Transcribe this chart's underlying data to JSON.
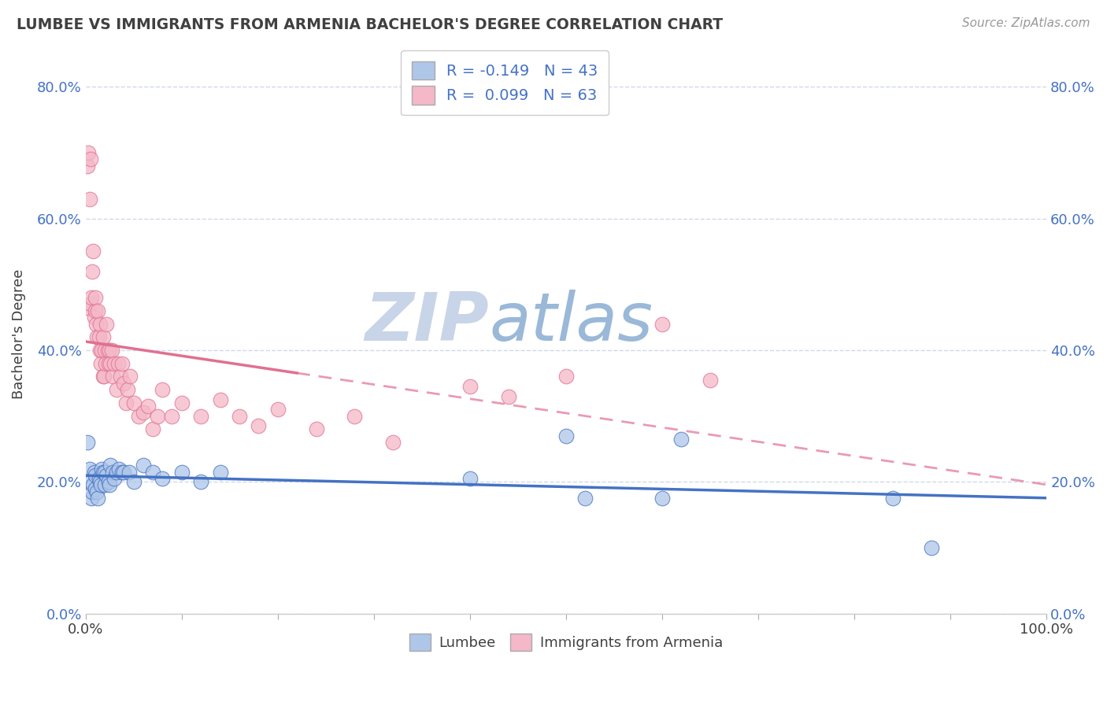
{
  "title": "LUMBEE VS IMMIGRANTS FROM ARMENIA BACHELOR'S DEGREE CORRELATION CHART",
  "source": "Source: ZipAtlas.com",
  "ylabel": "Bachelor's Degree",
  "lumbee_R": -0.149,
  "lumbee_N": 43,
  "armenia_R": 0.099,
  "armenia_N": 63,
  "lumbee_color": "#aec6e8",
  "armenia_color": "#f4b8c8",
  "lumbee_line_color": "#4472c4",
  "armenia_line_color": "#e07090",
  "bg_color": "#ffffff",
  "grid_color": "#d0d8e8",
  "title_color": "#404040",
  "watermark_zip_color": "#c8d4e8",
  "watermark_atlas_color": "#9ab8d8",
  "legend_text_color": "#4472c4",
  "xlim": [
    0.0,
    1.0
  ],
  "ylim": [
    0.0,
    0.85
  ],
  "lumbee_x": [
    0.002,
    0.004,
    0.005,
    0.006,
    0.007,
    0.008,
    0.009,
    0.01,
    0.01,
    0.012,
    0.013,
    0.014,
    0.015,
    0.016,
    0.017,
    0.018,
    0.02,
    0.02,
    0.022,
    0.024,
    0.025,
    0.026,
    0.028,
    0.03,
    0.032,
    0.035,
    0.038,
    0.04,
    0.045,
    0.05,
    0.06,
    0.07,
    0.08,
    0.1,
    0.12,
    0.14,
    0.4,
    0.5,
    0.52,
    0.6,
    0.62,
    0.84,
    0.88
  ],
  "lumbee_y": [
    0.26,
    0.22,
    0.2,
    0.175,
    0.185,
    0.195,
    0.215,
    0.19,
    0.21,
    0.185,
    0.175,
    0.205,
    0.2,
    0.195,
    0.22,
    0.215,
    0.195,
    0.215,
    0.21,
    0.2,
    0.195,
    0.225,
    0.215,
    0.205,
    0.215,
    0.22,
    0.215,
    0.215,
    0.215,
    0.2,
    0.225,
    0.215,
    0.205,
    0.215,
    0.2,
    0.215,
    0.205,
    0.27,
    0.175,
    0.175,
    0.265,
    0.175,
    0.1
  ],
  "armenia_x": [
    0.002,
    0.002,
    0.003,
    0.004,
    0.005,
    0.005,
    0.006,
    0.007,
    0.008,
    0.009,
    0.01,
    0.01,
    0.011,
    0.012,
    0.013,
    0.014,
    0.015,
    0.015,
    0.016,
    0.017,
    0.018,
    0.018,
    0.019,
    0.02,
    0.021,
    0.022,
    0.023,
    0.024,
    0.025,
    0.026,
    0.027,
    0.028,
    0.03,
    0.032,
    0.034,
    0.036,
    0.038,
    0.04,
    0.042,
    0.044,
    0.046,
    0.05,
    0.055,
    0.06,
    0.065,
    0.07,
    0.075,
    0.08,
    0.09,
    0.1,
    0.12,
    0.14,
    0.16,
    0.18,
    0.2,
    0.24,
    0.28,
    0.32,
    0.4,
    0.44,
    0.5,
    0.6,
    0.65
  ],
  "armenia_y": [
    0.465,
    0.68,
    0.7,
    0.63,
    0.69,
    0.47,
    0.48,
    0.52,
    0.55,
    0.45,
    0.46,
    0.48,
    0.44,
    0.42,
    0.46,
    0.42,
    0.4,
    0.44,
    0.38,
    0.4,
    0.36,
    0.42,
    0.36,
    0.4,
    0.38,
    0.44,
    0.4,
    0.38,
    0.4,
    0.38,
    0.4,
    0.36,
    0.38,
    0.34,
    0.38,
    0.36,
    0.38,
    0.35,
    0.32,
    0.34,
    0.36,
    0.32,
    0.3,
    0.305,
    0.315,
    0.28,
    0.3,
    0.34,
    0.3,
    0.32,
    0.3,
    0.325,
    0.3,
    0.285,
    0.31,
    0.28,
    0.3,
    0.26,
    0.345,
    0.33,
    0.36,
    0.44,
    0.355
  ],
  "yticks": [
    0.0,
    0.2,
    0.4,
    0.6,
    0.8
  ],
  "ytick_labels": [
    "0.0%",
    "20.0%",
    "40.0%",
    "60.0%",
    "80.0%"
  ],
  "xticks": [
    0.0,
    0.1,
    0.2,
    0.3,
    0.4,
    0.5,
    0.6,
    0.7,
    0.8,
    0.9,
    1.0
  ],
  "xtick_labels": [
    "0.0%",
    "",
    "",
    "",
    "",
    "",
    "",
    "",
    "",
    "",
    "100.0%"
  ]
}
